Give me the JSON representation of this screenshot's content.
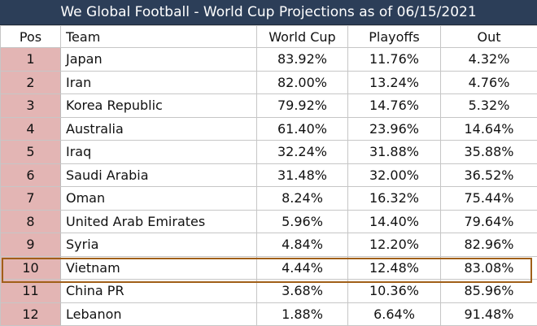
{
  "title": "We Global Football - World Cup Projections as of 06/15/2021",
  "columns": {
    "pos": "Pos",
    "team": "Team",
    "world_cup": "World Cup",
    "playoffs": "Playoffs",
    "out": "Out"
  },
  "rows": [
    {
      "pos": "1",
      "team": "Japan",
      "world_cup": "83.92%",
      "playoffs": "11.76%",
      "out": "4.32%"
    },
    {
      "pos": "2",
      "team": "Iran",
      "world_cup": "82.00%",
      "playoffs": "13.24%",
      "out": "4.76%"
    },
    {
      "pos": "3",
      "team": "Korea Republic",
      "world_cup": "79.92%",
      "playoffs": "14.76%",
      "out": "5.32%"
    },
    {
      "pos": "4",
      "team": "Australia",
      "world_cup": "61.40%",
      "playoffs": "23.96%",
      "out": "14.64%"
    },
    {
      "pos": "5",
      "team": "Iraq",
      "world_cup": "32.24%",
      "playoffs": "31.88%",
      "out": "35.88%"
    },
    {
      "pos": "6",
      "team": "Saudi Arabia",
      "world_cup": "31.48%",
      "playoffs": "32.00%",
      "out": "36.52%"
    },
    {
      "pos": "7",
      "team": "Oman",
      "world_cup": "8.24%",
      "playoffs": "16.32%",
      "out": "75.44%"
    },
    {
      "pos": "8",
      "team": "United Arab Emirates",
      "world_cup": "5.96%",
      "playoffs": "14.40%",
      "out": "79.64%"
    },
    {
      "pos": "9",
      "team": "Syria",
      "world_cup": "4.84%",
      "playoffs": "12.20%",
      "out": "82.96%"
    },
    {
      "pos": "10",
      "team": "Vietnam",
      "world_cup": "4.44%",
      "playoffs": "12.48%",
      "out": "83.08%"
    },
    {
      "pos": "11",
      "team": "China PR",
      "world_cup": "3.68%",
      "playoffs": "10.36%",
      "out": "85.96%"
    },
    {
      "pos": "12",
      "team": "Lebanon",
      "world_cup": "1.88%",
      "playoffs": "6.64%",
      "out": "91.48%"
    }
  ],
  "highlighted_team": "Vietnam",
  "colors": {
    "title_bg": "#2c3e58",
    "pos_bg": "#e3b5b4",
    "highlight_border": "#a05f18"
  }
}
